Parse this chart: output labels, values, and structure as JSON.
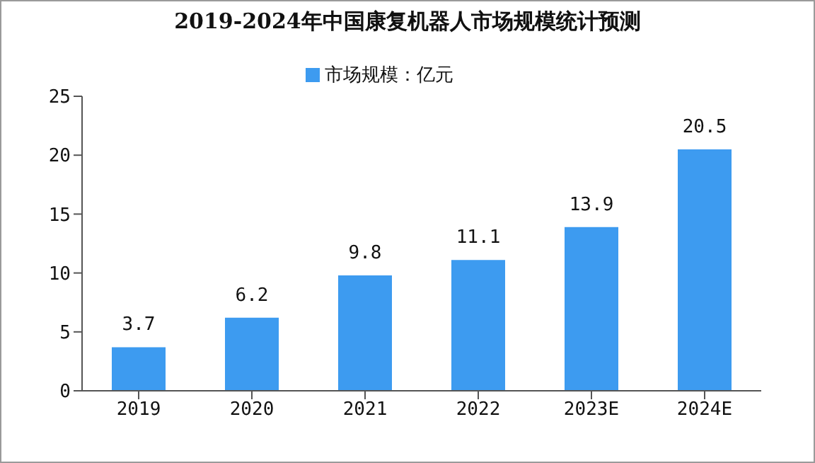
{
  "chart_data": {
    "type": "bar",
    "title": "2019-2024年中国康复机器人市场规模统计预测",
    "categories": [
      "2019",
      "2020",
      "2021",
      "2022",
      "2023E",
      "2024E"
    ],
    "series": [
      {
        "name": "市场规模：亿元",
        "color": "#3d9bf0",
        "values": [
          3.7,
          6.2,
          9.8,
          11.1,
          13.9,
          20.5
        ]
      }
    ],
    "ylim": [
      0,
      25
    ],
    "yticks": [
      0,
      5,
      10,
      15,
      20,
      25
    ],
    "grid": false,
    "legend": "top",
    "data_labels": true
  }
}
